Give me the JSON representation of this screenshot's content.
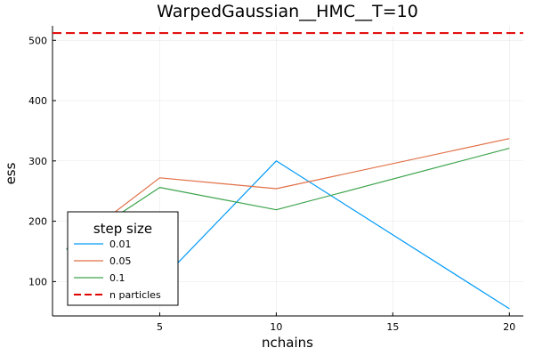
{
  "chart_data": {
    "type": "line",
    "title": "WarpedGaussian__HMC__T=10",
    "xlabel": "nchains",
    "ylabel": "ess",
    "xlim": [
      0.4,
      20.6
    ],
    "ylim": [
      43,
      524
    ],
    "xticks": [
      5,
      10,
      15,
      20
    ],
    "yticks": [
      100,
      200,
      300,
      400,
      500
    ],
    "grid": true,
    "legend": {
      "title": "step size",
      "position": "bottom-left",
      "entries": [
        "0.01",
        "0.05",
        "0.1",
        "n particles"
      ]
    },
    "series": [
      {
        "name": "0.01",
        "color": "#009af9",
        "x": [
          1,
          5,
          10,
          20
        ],
        "y": [
          154,
          100,
          300,
          55
        ]
      },
      {
        "name": "0.05",
        "color": "#e26f46",
        "x": [
          1,
          5,
          10,
          20
        ],
        "y": [
          154,
          272,
          254,
          337
        ]
      },
      {
        "name": "0.1",
        "color": "#3da44d",
        "x": [
          1,
          5,
          10,
          20
        ],
        "y": [
          154,
          256,
          219,
          321
        ]
      }
    ],
    "reference_lines": [
      {
        "name": "n particles",
        "color": "#e00000",
        "style": "dashed",
        "y": 512
      }
    ]
  }
}
